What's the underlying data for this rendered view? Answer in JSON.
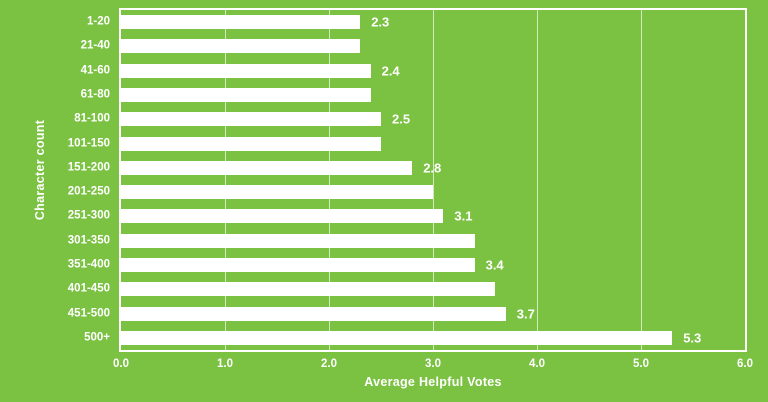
{
  "chart_data": {
    "type": "bar",
    "orientation": "horizontal",
    "title": "",
    "xlabel": "Average Helpful Votes",
    "ylabel": "Character count",
    "categories": [
      "1-20",
      "21-40",
      "41-60",
      "61-80",
      "81-100",
      "101-150",
      "151-200",
      "201-250",
      "251-300",
      "301-350",
      "351-400",
      "401-450",
      "451-500",
      "500+"
    ],
    "values": [
      2.3,
      2.3,
      2.4,
      2.4,
      2.5,
      2.5,
      2.8,
      3.0,
      3.1,
      3.4,
      3.4,
      3.6,
      3.7,
      5.3
    ],
    "bar_labels": [
      "2.3",
      "",
      "2.4",
      "",
      "2.5",
      "",
      "2.8",
      "",
      "3.1",
      "",
      "3.4",
      "",
      "3.7",
      "5.3"
    ],
    "xticks": [
      "0.0",
      "1.0",
      "2.0",
      "3.0",
      "4.0",
      "5.0",
      "6.0"
    ],
    "xlim": [
      0,
      6
    ],
    "grid": true,
    "legend": false,
    "colors": {
      "background": "#7bc142",
      "bar": "#ffffff",
      "text": "#ffffff",
      "gridline": "rgba(255,255,255,0.65)",
      "frame": "#ffffff"
    }
  }
}
